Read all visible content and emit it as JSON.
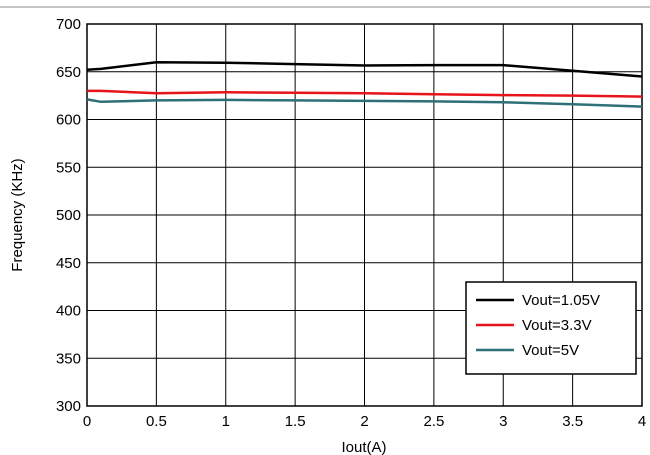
{
  "chart_data": {
    "type": "line",
    "xlabel": "Iout(A)",
    "ylabel": "Frequency (KHz)",
    "xlim": [
      0,
      4
    ],
    "ylim": [
      300,
      700
    ],
    "xticks": [
      "0",
      "0.5",
      "1",
      "1.5",
      "2",
      "2.5",
      "3",
      "3.5",
      "4"
    ],
    "yticks": [
      "300",
      "350",
      "400",
      "450",
      "500",
      "550",
      "600",
      "650",
      "700"
    ],
    "grid": true,
    "legend_position": "bottom-right",
    "series": [
      {
        "name": "Vout=1.05V",
        "color": "#000000",
        "points": [
          [
            0,
            652
          ],
          [
            0.1,
            653
          ],
          [
            0.5,
            660
          ],
          [
            1,
            659.5
          ],
          [
            1.5,
            658
          ],
          [
            2,
            656.5
          ],
          [
            2.5,
            657
          ],
          [
            3,
            657
          ],
          [
            3.5,
            651
          ],
          [
            4,
            645
          ]
        ]
      },
      {
        "name": "Vout=3.3V",
        "color": "#e8141b",
        "points": [
          [
            0,
            630
          ],
          [
            0.1,
            630
          ],
          [
            0.5,
            627.5
          ],
          [
            1,
            628.5
          ],
          [
            1.5,
            628
          ],
          [
            2,
            627.5
          ],
          [
            2.5,
            626.5
          ],
          [
            3,
            625.5
          ],
          [
            3.5,
            625
          ],
          [
            4,
            624
          ]
        ]
      },
      {
        "name": "Vout=5V",
        "color": "#2f6f78",
        "points": [
          [
            0,
            621
          ],
          [
            0.1,
            618.5
          ],
          [
            0.5,
            620
          ],
          [
            1,
            620.5
          ],
          [
            1.5,
            620
          ],
          [
            2,
            619.5
          ],
          [
            2.5,
            619
          ],
          [
            3,
            618
          ],
          [
            3.5,
            616
          ],
          [
            4,
            613.5
          ]
        ]
      }
    ]
  }
}
